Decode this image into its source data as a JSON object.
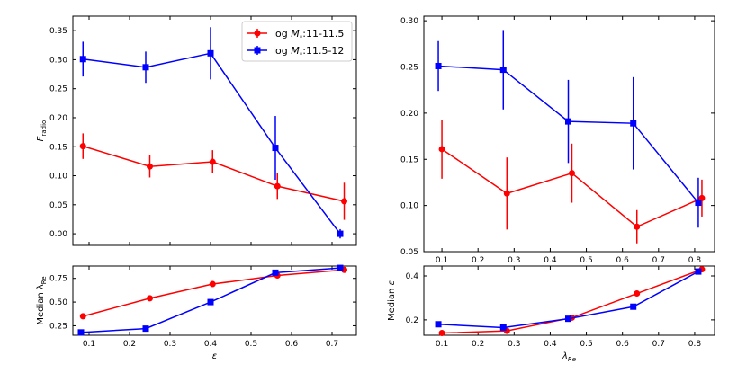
{
  "colors": {
    "series1": "#ff0000",
    "series2": "#0000ff",
    "frame": "#000000"
  },
  "legend": {
    "placement": "top-right",
    "series1_label": "log M*:11-11.5",
    "series2_label": "log M*:11.5-12"
  },
  "chart_data": [
    {
      "id": "top-left",
      "type": "line",
      "ylabel": "F_radio",
      "xlim": [
        0.06,
        0.76
      ],
      "ylim": [
        -0.02,
        0.375
      ],
      "xticks": [
        0.1,
        0.2,
        0.3,
        0.4,
        0.5,
        0.6,
        0.7
      ],
      "yticks": [
        0.0,
        0.05,
        0.1,
        0.15,
        0.2,
        0.25,
        0.3,
        0.35
      ],
      "ytick_labels": [
        "0.00",
        "0.05",
        "0.10",
        "0.15",
        "0.20",
        "0.25",
        "0.30",
        "0.35"
      ],
      "xtick_labels": [
        "",
        "",
        "",
        "",
        "",
        "",
        ""
      ],
      "series": [
        {
          "name": "log M*:11-11.5",
          "color": "#ff0000",
          "marker": "circle",
          "x": [
            0.085,
            0.25,
            0.405,
            0.565,
            0.73
          ],
          "y": [
            0.151,
            0.116,
            0.124,
            0.082,
            0.056
          ],
          "err": [
            0.022,
            0.019,
            0.02,
            0.022,
            0.032
          ]
        },
        {
          "name": "log M*:11.5-12",
          "color": "#0000ff",
          "marker": "square",
          "x": [
            0.085,
            0.24,
            0.4,
            0.56,
            0.72
          ],
          "y": [
            0.301,
            0.287,
            0.311,
            0.148,
            0.0
          ],
          "err": [
            0.03,
            0.027,
            0.045,
            0.055,
            0.008
          ]
        }
      ]
    },
    {
      "id": "top-right",
      "type": "line",
      "ylabel": "",
      "xlim": [
        0.05,
        0.855
      ],
      "ylim": [
        0.05,
        0.305
      ],
      "xticks": [
        0.1,
        0.2,
        0.3,
        0.4,
        0.5,
        0.6,
        0.7,
        0.8
      ],
      "yticks": [
        0.05,
        0.1,
        0.15,
        0.2,
        0.25,
        0.3
      ],
      "ytick_labels": [
        "0.05",
        "0.10",
        "0.15",
        "0.20",
        "0.25",
        "0.30"
      ],
      "xtick_labels": [
        "0.1",
        "0.2",
        "0.3",
        "0.4",
        "0.5",
        "0.6",
        "0.7",
        "0.8"
      ],
      "series": [
        {
          "name": "log M*:11-11.5",
          "color": "#ff0000",
          "marker": "circle",
          "x": [
            0.1,
            0.28,
            0.46,
            0.64,
            0.82
          ],
          "y": [
            0.161,
            0.113,
            0.135,
            0.077,
            0.108
          ],
          "err": [
            0.032,
            0.039,
            0.032,
            0.018,
            0.02
          ]
        },
        {
          "name": "log M*:11.5-12",
          "color": "#0000ff",
          "marker": "square",
          "x": [
            0.09,
            0.27,
            0.45,
            0.63,
            0.81
          ],
          "y": [
            0.251,
            0.247,
            0.191,
            0.189,
            0.103
          ],
          "err": [
            0.027,
            0.043,
            0.045,
            0.05,
            0.027
          ]
        }
      ]
    },
    {
      "id": "bottom-left",
      "type": "line",
      "ylabel": "Median λ_Re",
      "xlabel": "ε",
      "xlim": [
        0.06,
        0.76
      ],
      "ylim": [
        0.15,
        0.88
      ],
      "xticks": [
        0.1,
        0.2,
        0.3,
        0.4,
        0.5,
        0.6,
        0.7
      ],
      "yticks": [
        0.25,
        0.5,
        0.75
      ],
      "ytick_labels": [
        "0.25",
        "0.50",
        "0.75"
      ],
      "xtick_labels": [
        "0.1",
        "0.2",
        "0.3",
        "0.4",
        "0.5",
        "0.6",
        "0.7"
      ],
      "series": [
        {
          "name": "log M*:11-11.5",
          "color": "#ff0000",
          "marker": "circle",
          "x": [
            0.085,
            0.25,
            0.405,
            0.565,
            0.73
          ],
          "y": [
            0.35,
            0.54,
            0.69,
            0.78,
            0.84
          ]
        },
        {
          "name": "log M*:11.5-12",
          "color": "#0000ff",
          "marker": "square",
          "x": [
            0.08,
            0.24,
            0.4,
            0.56,
            0.72
          ],
          "y": [
            0.18,
            0.22,
            0.5,
            0.81,
            0.86
          ]
        }
      ]
    },
    {
      "id": "bottom-right",
      "type": "line",
      "ylabel": "Median ε",
      "xlabel": "λ_Re",
      "xlim": [
        0.05,
        0.855
      ],
      "ylim": [
        0.13,
        0.445
      ],
      "xticks": [
        0.1,
        0.2,
        0.3,
        0.4,
        0.5,
        0.6,
        0.7,
        0.8
      ],
      "yticks": [
        0.2,
        0.4
      ],
      "ytick_labels": [
        "0.2",
        "0.4"
      ],
      "xtick_labels": [
        "0.1",
        "0.2",
        "0.3",
        "0.4",
        "0.5",
        "0.6",
        "0.7",
        "0.8"
      ],
      "series": [
        {
          "name": "log M*:11-11.5",
          "color": "#ff0000",
          "marker": "circle",
          "x": [
            0.1,
            0.28,
            0.46,
            0.64,
            0.82
          ],
          "y": [
            0.14,
            0.15,
            0.21,
            0.32,
            0.43
          ]
        },
        {
          "name": "log M*:11.5-12",
          "color": "#0000ff",
          "marker": "square",
          "x": [
            0.09,
            0.27,
            0.45,
            0.63,
            0.81
          ],
          "y": [
            0.18,
            0.165,
            0.205,
            0.26,
            0.42
          ]
        }
      ]
    }
  ]
}
